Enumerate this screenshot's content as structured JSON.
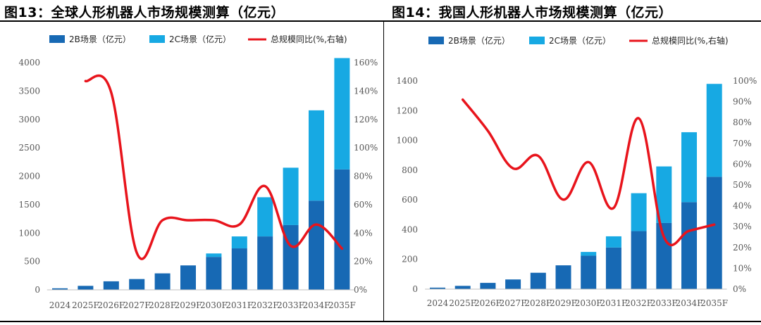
{
  "figures": {
    "left_title": "图13：全球人形机器人市场规模测算（亿元）",
    "right_title": "图14：我国人形机器人市场规模测算（亿元）"
  },
  "colors": {
    "series_2b": "#1769b4",
    "series_2c": "#17a9e3",
    "series_ratio": "#e8141c"
  },
  "chart_data": [
    {
      "type": "bar",
      "stacked": true,
      "title": "全球人形机器人市场规模测算（亿元）",
      "categories": [
        "2024",
        "2025F",
        "2026F",
        "2027F",
        "2028F",
        "2029F",
        "2030F",
        "2031F",
        "2032F",
        "2033F",
        "2034F",
        "2035F"
      ],
      "series": [
        {
          "name": "2B场景（亿元）",
          "type": "bar",
          "axis": "left",
          "values": [
            27,
            70,
            150,
            190,
            290,
            430,
            580,
            730,
            940,
            1140,
            1570,
            2120
          ]
        },
        {
          "name": "2C场景（亿元）",
          "type": "bar",
          "axis": "left",
          "values": [
            0,
            0,
            0,
            0,
            0,
            0,
            60,
            210,
            690,
            1010,
            1590,
            1960
          ]
        },
        {
          "name": "总规模同比(%,右轴)",
          "type": "line",
          "axis": "right",
          "values": [
            null,
            147,
            139,
            26,
            49,
            49,
            49,
            46,
            73,
            31,
            46,
            29
          ]
        }
      ],
      "left_axis": {
        "ylim": [
          0,
          4000
        ],
        "ticks": [
          "0",
          "500",
          "1000",
          "1500",
          "2000",
          "2500",
          "3000",
          "3500",
          "4000"
        ]
      },
      "right_axis": {
        "ylim": [
          0,
          160
        ],
        "ticks": [
          "0%",
          "20%",
          "40%",
          "60%",
          "80%",
          "100%",
          "120%",
          "140%",
          "160%"
        ]
      },
      "legend": "top"
    },
    {
      "type": "bar",
      "stacked": true,
      "title": "我国人形机器人市场规模测算（亿元）",
      "categories": [
        "2024",
        "2025F",
        "2026F",
        "2027F",
        "2028F",
        "2029F",
        "2030F",
        "2031F",
        "2032F",
        "2033F",
        "2034F",
        "2035F"
      ],
      "series": [
        {
          "name": "2B场景（亿元）",
          "type": "bar",
          "axis": "left",
          "values": [
            10,
            22,
            42,
            65,
            110,
            160,
            225,
            280,
            390,
            445,
            585,
            755
          ]
        },
        {
          "name": "2C场景（亿元）",
          "type": "bar",
          "axis": "left",
          "values": [
            0,
            0,
            0,
            0,
            0,
            0,
            25,
            75,
            255,
            380,
            470,
            625
          ]
        },
        {
          "name": "总规模同比(%,右轴)",
          "type": "line",
          "axis": "right",
          "values": [
            null,
            91,
            76,
            58,
            64,
            43,
            61,
            39,
            82,
            25,
            28,
            31
          ]
        }
      ],
      "left_axis": {
        "ylim": [
          0,
          1400
        ],
        "ticks": [
          "0",
          "200",
          "400",
          "600",
          "800",
          "1000",
          "1200",
          "1400"
        ]
      },
      "right_axis": {
        "ylim": [
          0,
          100
        ],
        "ticks": [
          "0%",
          "10%",
          "20%",
          "30%",
          "40%",
          "50%",
          "60%",
          "70%",
          "80%",
          "90%",
          "100%"
        ]
      },
      "legend": "top"
    }
  ]
}
